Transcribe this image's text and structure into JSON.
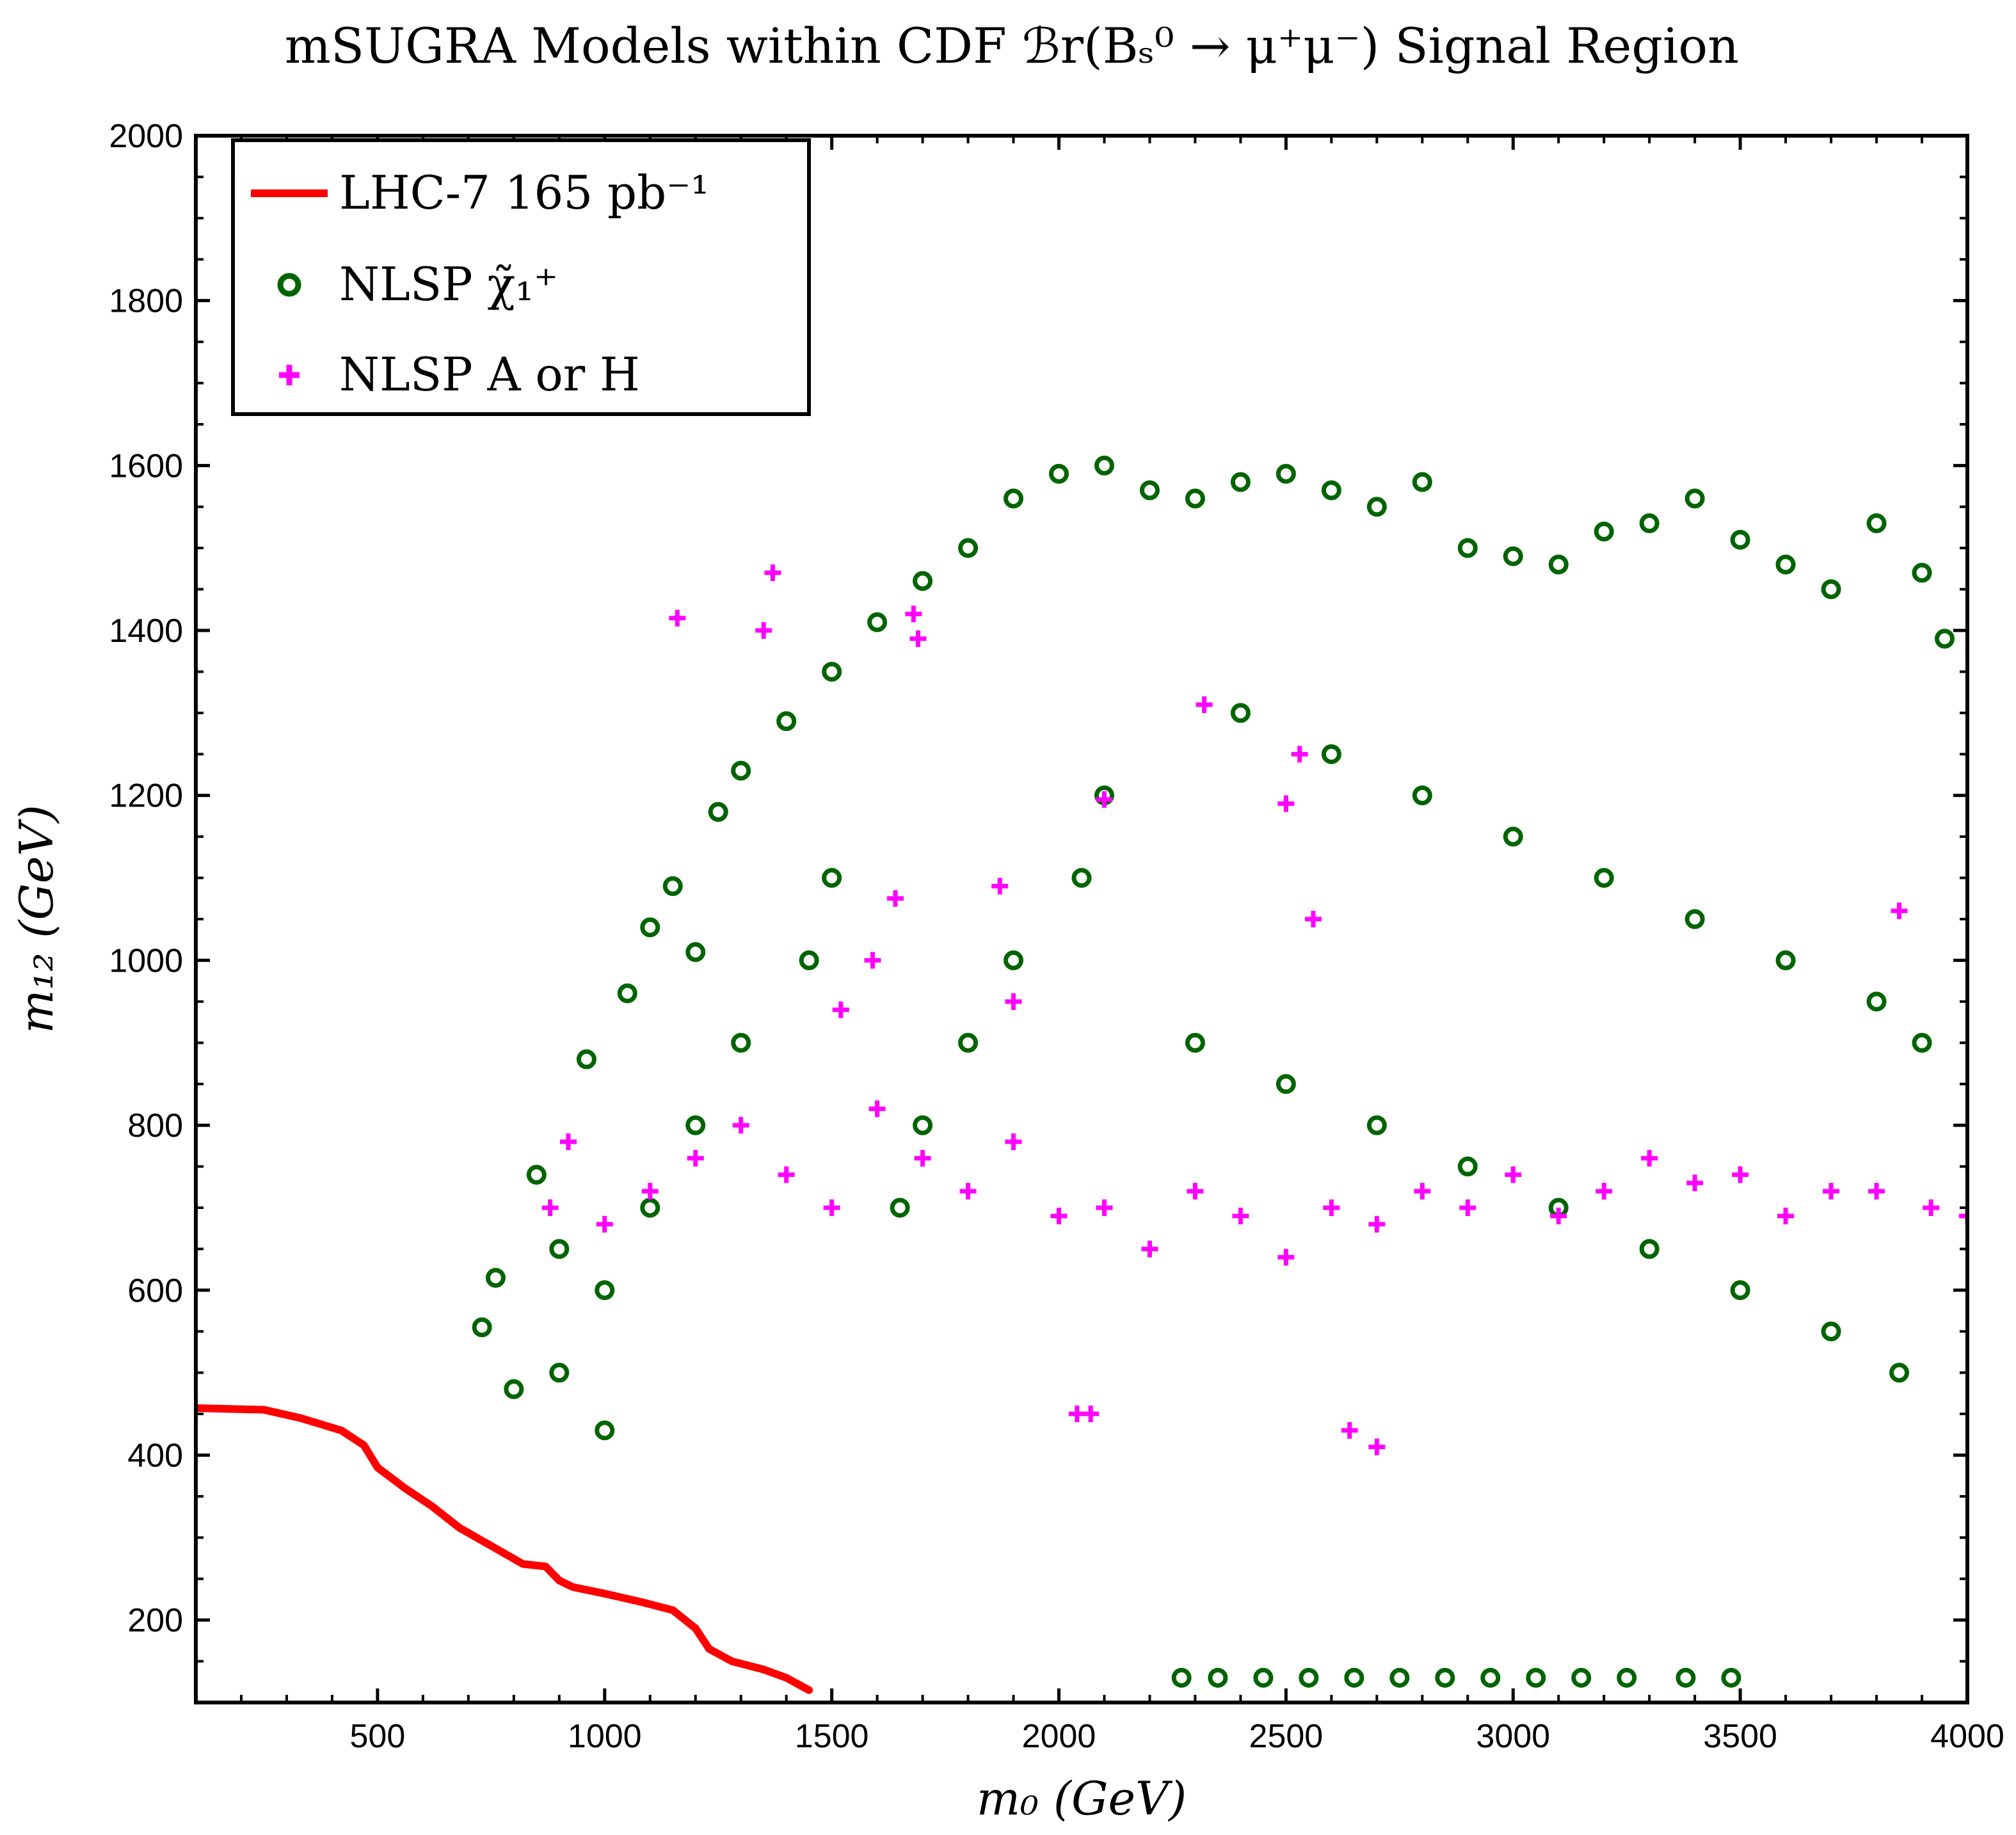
{
  "chart_data": {
    "type": "scatter",
    "title": "mSUGRA Models within CDF ℬr(Bₛ⁰ → μ⁺μ⁻) Signal Region",
    "xlabel": "m₀ (GeV)",
    "ylabel": "m₁₂ (GeV)",
    "xlim": [
      100,
      4000
    ],
    "ylim": [
      100,
      2000
    ],
    "x_ticks": [
      500,
      1000,
      1500,
      2000,
      2500,
      3000,
      3500,
      4000
    ],
    "y_ticks": [
      200,
      400,
      600,
      800,
      1000,
      1200,
      1400,
      1600,
      1800,
      2000
    ],
    "x_tick_labels": [
      "500",
      "1000",
      "1500",
      "2000",
      "2500",
      "3000",
      "3500",
      "4000"
    ],
    "y_tick_labels": [
      "200",
      "400",
      "600",
      "800",
      "1000",
      "1200",
      "1400",
      "1600",
      "1800",
      "2000"
    ],
    "grid": false,
    "legend_position": "top-left",
    "legend": [
      {
        "label": "LHC-7 165 pb⁻¹",
        "marker": "line",
        "color": "#ff0000"
      },
      {
        "label": "NLSP χ̃₁⁺",
        "marker": "open-circle",
        "color": "#006400"
      },
      {
        "label": "NLSP A or H",
        "marker": "plus",
        "color": "#ff00ff"
      }
    ],
    "series": [
      {
        "name": "LHC-7 165 pb⁻¹",
        "kind": "line",
        "color": "#ff0000",
        "x": [
          100,
          250,
          330,
          420,
          470,
          500,
          560,
          620,
          680,
          750,
          820,
          870,
          900,
          930,
          1000,
          1080,
          1150,
          1200,
          1230,
          1280,
          1350,
          1400,
          1450
        ],
        "y": [
          457,
          455,
          445,
          430,
          412,
          385,
          360,
          338,
          312,
          290,
          268,
          265,
          248,
          240,
          232,
          222,
          212,
          190,
          165,
          150,
          140,
          130,
          115
        ]
      },
      {
        "name": "NLSP χ̃₁⁺",
        "kind": "scatter",
        "marker": "open-circle",
        "color": "#006400",
        "x": [
          730,
          760,
          800,
          850,
          900,
          960,
          1000,
          1050,
          1100,
          1150,
          1200,
          1250,
          1300,
          1400,
          1500,
          1600,
          1700,
          1800,
          1900,
          2000,
          2100,
          2200,
          2300,
          2400,
          2500,
          2600,
          2700,
          2800,
          2900,
          3000,
          3100,
          3200,
          3300,
          3400,
          3500,
          3600,
          3700,
          3800,
          3900,
          3950,
          2100,
          2050,
          1900,
          1800,
          1700,
          1650,
          2400,
          2600,
          2800,
          3000,
          3200,
          3400,
          3600,
          3800,
          3900,
          1500,
          1450,
          1300,
          1200,
          1100,
          1000,
          900,
          2300,
          2500,
          2700,
          2900,
          3100,
          3300,
          3500,
          3700,
          3850,
          2270,
          2350,
          2450,
          2550,
          2650,
          2750,
          2850,
          2950,
          3050,
          3150,
          3250,
          3380,
          3480
        ],
        "y": [
          555,
          615,
          480,
          740,
          650,
          880,
          430,
          960,
          1040,
          1090,
          1010,
          1180,
          1230,
          1290,
          1350,
          1410,
          1460,
          1500,
          1560,
          1590,
          1600,
          1570,
          1560,
          1580,
          1590,
          1570,
          1550,
          1580,
          1500,
          1490,
          1480,
          1520,
          1530,
          1560,
          1510,
          1480,
          1450,
          1530,
          1470,
          1390,
          1200,
          1100,
          1000,
          900,
          800,
          700,
          1300,
          1250,
          1200,
          1150,
          1100,
          1050,
          1000,
          950,
          900,
          1100,
          1000,
          900,
          800,
          700,
          600,
          500,
          900,
          850,
          800,
          750,
          700,
          650,
          600,
          550,
          500,
          130,
          130,
          130,
          130,
          130,
          130,
          130,
          130,
          130,
          130,
          130,
          130,
          130
        ]
      },
      {
        "name": "NLSP A or H",
        "kind": "scatter",
        "marker": "plus",
        "color": "#ff00ff",
        "x": [
          1160,
          1350,
          1370,
          1680,
          1690,
          1640,
          1590,
          1520,
          1870,
          1900,
          2100,
          2320,
          2500,
          2530,
          2560,
          880,
          920,
          1000,
          1100,
          1200,
          1300,
          1400,
          1500,
          1600,
          1700,
          1800,
          1900,
          2000,
          2100,
          2200,
          2300,
          2400,
          2500,
          2600,
          2700,
          2800,
          2900,
          3000,
          3100,
          3200,
          3300,
          3400,
          3500,
          3600,
          3700,
          3800,
          3850,
          3920,
          4000,
          2040,
          2070,
          2640,
          2700
        ],
        "y": [
          1415,
          1400,
          1470,
          1420,
          1390,
          1075,
          1000,
          940,
          1090,
          950,
          1195,
          1310,
          1190,
          1250,
          1050,
          700,
          780,
          680,
          720,
          760,
          800,
          740,
          700,
          820,
          760,
          720,
          780,
          690,
          700,
          650,
          720,
          690,
          640,
          700,
          680,
          720,
          700,
          740,
          690,
          720,
          760,
          730,
          740,
          690,
          720,
          720,
          1060,
          700,
          690,
          450,
          450,
          430,
          410
        ]
      }
    ]
  }
}
